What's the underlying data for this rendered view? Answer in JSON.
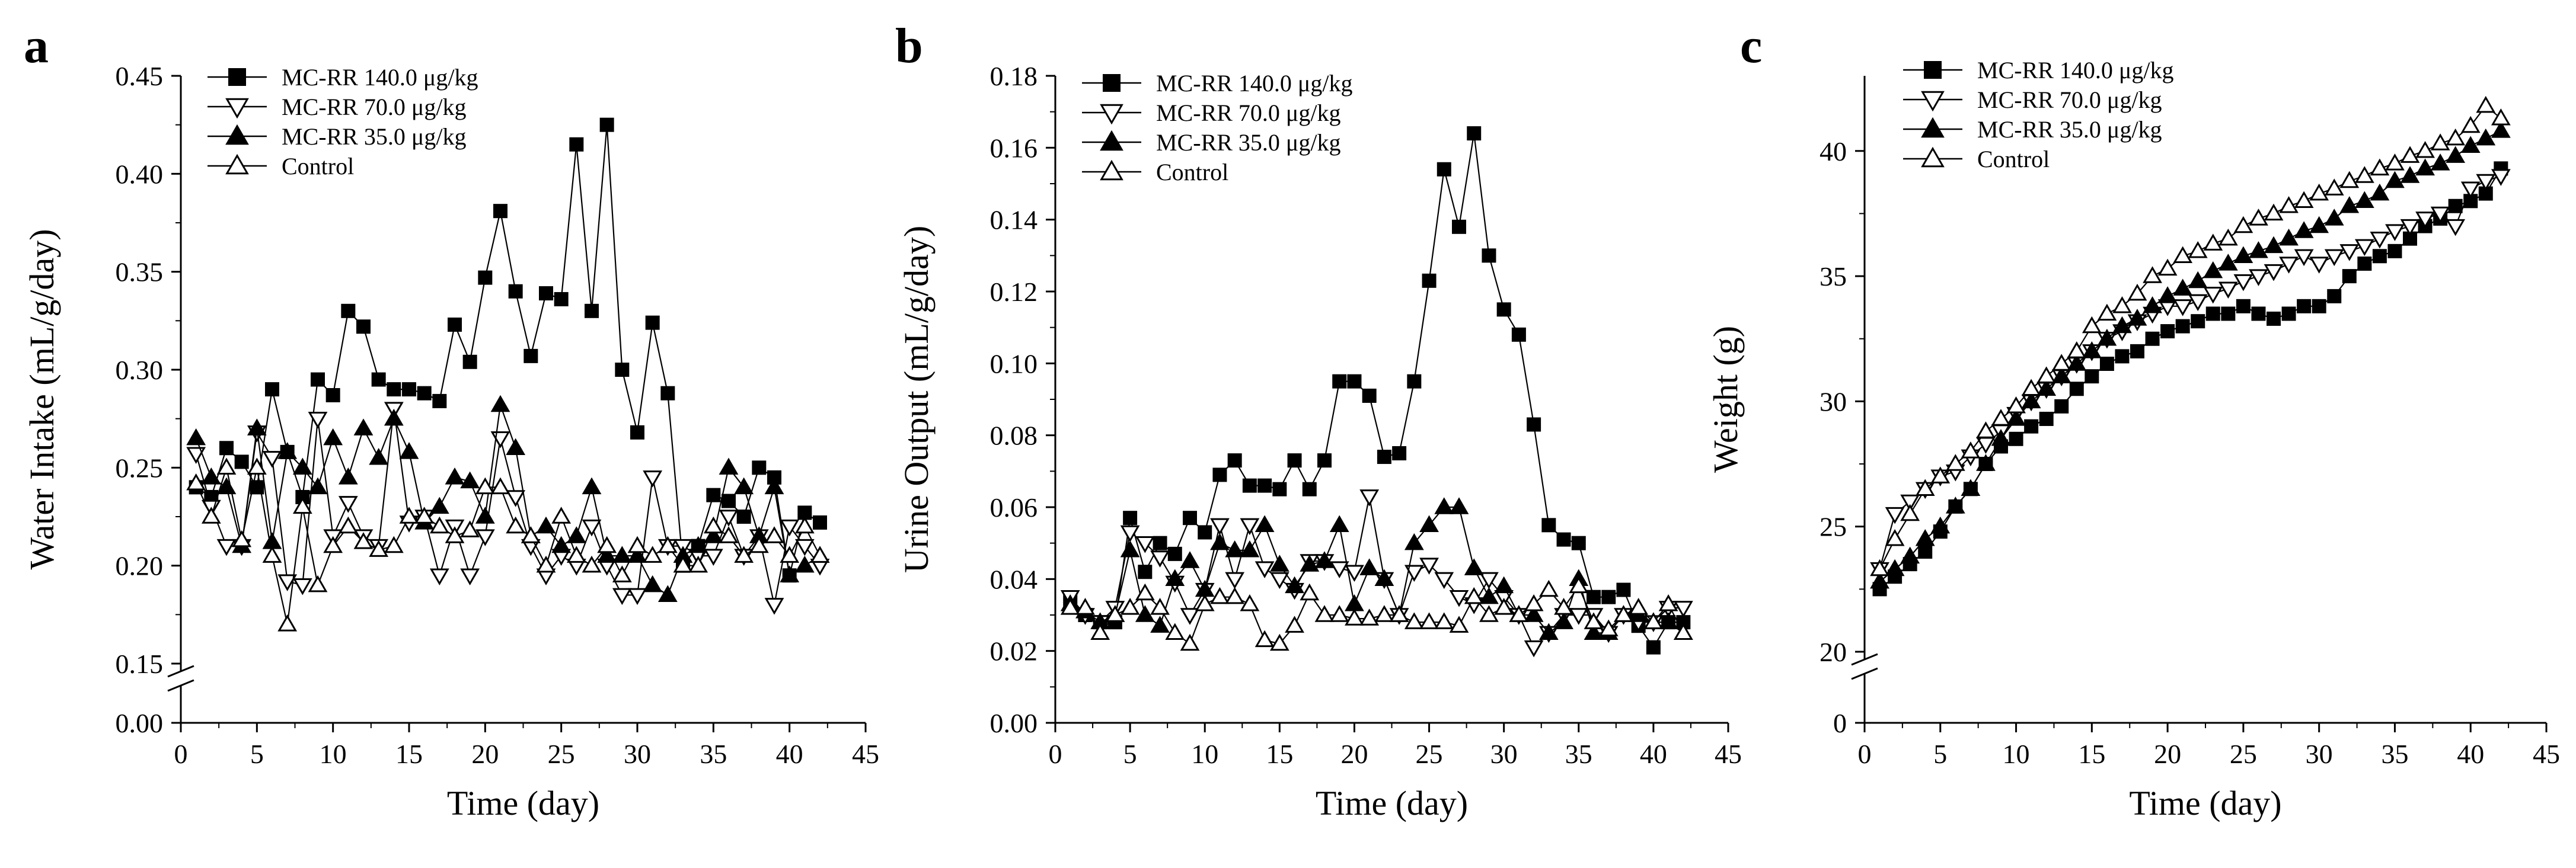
{
  "panels": [
    {
      "letter": "a",
      "type": "line",
      "xlabel": "Time (day)",
      "ylabel": "Water Intake (mL/g/day)",
      "xlim": [
        0,
        45
      ],
      "xticks": [
        0,
        5,
        10,
        15,
        20,
        25,
        30,
        35,
        40,
        45
      ],
      "ylim": [
        0.15,
        0.45
      ],
      "yticks": [
        0.15,
        0.2,
        0.25,
        0.3,
        0.35,
        0.4,
        0.45
      ],
      "ytick_labels": [
        "0.15",
        "0.20",
        "0.25",
        "0.30",
        "0.35",
        "0.40",
        "0.45"
      ],
      "zero_label": "0.00",
      "legend": [
        "MC-RR 140.0 μg/kg",
        "MC-RR 70.0 μg/kg",
        "MC-RR 35.0 μg/kg",
        "Control"
      ],
      "series": [
        {
          "name": "MC-RR 140.0 μg/kg",
          "marker": "square",
          "values": [
            0.24,
            0.235,
            0.26,
            0.253,
            0.24,
            0.29,
            0.258,
            0.235,
            0.295,
            0.287,
            0.33,
            0.322,
            0.295,
            0.29,
            0.29,
            0.288,
            0.284,
            0.323,
            0.304,
            0.347,
            0.381,
            0.34,
            0.307,
            0.339,
            0.336,
            0.415,
            0.33,
            0.425,
            0.3,
            0.268,
            0.324,
            0.288,
            0.2,
            0.21,
            0.236,
            0.233,
            0.225,
            0.25,
            0.245,
            0.195,
            0.227,
            0.222
          ]
        },
        {
          "name": "MC-RR 70.0 μg/kg",
          "marker": "triangle-down",
          "values": [
            0.257,
            0.23,
            0.21,
            0.21,
            0.268,
            0.255,
            0.192,
            0.19,
            0.275,
            0.215,
            0.232,
            0.215,
            0.21,
            0.28,
            0.222,
            0.225,
            0.195,
            0.22,
            0.195,
            0.215,
            0.265,
            0.235,
            0.21,
            0.195,
            0.205,
            0.2,
            0.22,
            0.2,
            0.185,
            0.185,
            0.245,
            0.21,
            0.21,
            0.205,
            0.205,
            0.225,
            0.205,
            0.215,
            0.18,
            0.22,
            0.21,
            0.2
          ]
        },
        {
          "name": "MC-RR 35.0 μg/kg",
          "marker": "triangle-up",
          "values": [
            0.265,
            0.245,
            0.24,
            0.21,
            0.27,
            0.212,
            0.258,
            0.25,
            0.24,
            0.265,
            0.245,
            0.27,
            0.255,
            0.275,
            0.258,
            0.222,
            0.23,
            0.245,
            0.243,
            0.225,
            0.282,
            0.26,
            0.215,
            0.22,
            0.21,
            0.215,
            0.24,
            0.205,
            0.205,
            0.205,
            0.19,
            0.185,
            0.205,
            0.21,
            0.215,
            0.25,
            0.24,
            0.215,
            0.24,
            0.195,
            0.2,
            0.205
          ]
        },
        {
          "name": "Control",
          "marker": "triangle-up-open",
          "values": [
            0.242,
            0.225,
            0.25,
            0.213,
            0.25,
            0.205,
            0.17,
            0.23,
            0.19,
            0.21,
            0.22,
            0.212,
            0.208,
            0.21,
            0.225,
            0.225,
            0.22,
            0.215,
            0.218,
            0.24,
            0.24,
            0.22,
            0.215,
            0.2,
            0.225,
            0.205,
            0.2,
            0.21,
            0.195,
            0.21,
            0.205,
            0.21,
            0.2,
            0.2,
            0.22,
            0.215,
            0.205,
            0.21,
            0.215,
            0.205,
            0.22,
            0.205
          ]
        }
      ]
    },
    {
      "letter": "b",
      "type": "line",
      "xlabel": "Time (day)",
      "ylabel": "Urine Output (mL/g/day)",
      "xlim": [
        0,
        45
      ],
      "xticks": [
        0,
        5,
        10,
        15,
        20,
        25,
        30,
        35,
        40,
        45
      ],
      "ylim": [
        0,
        0.18
      ],
      "yticks": [
        0,
        0.02,
        0.04,
        0.06,
        0.08,
        0.1,
        0.12,
        0.14,
        0.16,
        0.18
      ],
      "ytick_labels": [
        "0.00",
        "0.02",
        "0.04",
        "0.06",
        "0.08",
        "0.10",
        "0.12",
        "0.14",
        "0.16",
        "0.18"
      ],
      "zero_label": "",
      "legend": [
        "MC-RR 140.0 μg/kg",
        "MC-RR 70.0 μg/kg",
        "MC-RR 35.0 μg/kg",
        "Control"
      ],
      "series": [
        {
          "name": "MC-RR 140.0 μg/kg",
          "marker": "square",
          "values": [
            0.034,
            0.03,
            0.028,
            0.028,
            0.057,
            0.042,
            0.05,
            0.047,
            0.057,
            0.053,
            0.069,
            0.073,
            0.066,
            0.066,
            0.065,
            0.073,
            0.065,
            0.073,
            0.095,
            0.095,
            0.091,
            0.074,
            0.075,
            0.095,
            0.123,
            0.154,
            0.138,
            0.164,
            0.13,
            0.115,
            0.108,
            0.083,
            0.055,
            0.051,
            0.05,
            0.035,
            0.035,
            0.037,
            0.027,
            0.021,
            0.028,
            0.028
          ]
        },
        {
          "name": "MC-RR 70.0 μg/kg",
          "marker": "triangle-down",
          "values": [
            0.035,
            0.03,
            0.028,
            0.032,
            0.053,
            0.05,
            0.046,
            0.039,
            0.03,
            0.037,
            0.055,
            0.04,
            0.055,
            0.043,
            0.04,
            0.037,
            0.045,
            0.045,
            0.043,
            0.042,
            0.063,
            0.04,
            0.03,
            0.042,
            0.044,
            0.04,
            0.035,
            0.033,
            0.04,
            0.035,
            0.03,
            0.021,
            0.025,
            0.03,
            0.03,
            0.03,
            0.025,
            0.03,
            0.028,
            0.028,
            0.032,
            0.032
          ]
        },
        {
          "name": "MC-RR 35.0 μg/kg",
          "marker": "triangle-up",
          "values": [
            0.033,
            0.031,
            0.028,
            0.03,
            0.048,
            0.03,
            0.027,
            0.04,
            0.045,
            0.037,
            0.05,
            0.048,
            0.048,
            0.055,
            0.044,
            0.038,
            0.044,
            0.045,
            0.055,
            0.033,
            0.043,
            0.04,
            0.03,
            0.05,
            0.055,
            0.06,
            0.06,
            0.043,
            0.035,
            0.038,
            0.03,
            0.03,
            0.025,
            0.028,
            0.04,
            0.025,
            0.025,
            0.03,
            0.03,
            0.028,
            0.028,
            0.025
          ]
        },
        {
          "name": "Control",
          "marker": "triangle-up-open",
          "values": [
            0.032,
            0.032,
            0.025,
            0.03,
            0.032,
            0.036,
            0.032,
            0.025,
            0.022,
            0.033,
            0.035,
            0.035,
            0.033,
            0.023,
            0.022,
            0.027,
            0.036,
            0.03,
            0.03,
            0.029,
            0.029,
            0.03,
            0.03,
            0.028,
            0.028,
            0.028,
            0.027,
            0.035,
            0.03,
            0.032,
            0.03,
            0.033,
            0.037,
            0.032,
            0.038,
            0.028,
            0.026,
            0.03,
            0.032,
            0.028,
            0.033,
            0.025
          ]
        }
      ]
    },
    {
      "letter": "c",
      "type": "line",
      "xlabel": "Time (day)",
      "ylabel": "Weight (g)",
      "xlim": [
        0,
        45
      ],
      "xticks": [
        0,
        5,
        10,
        15,
        20,
        25,
        30,
        35,
        40,
        45
      ],
      "ylim": [
        20,
        43
      ],
      "yticks": [
        20,
        25,
        30,
        35,
        40
      ],
      "ytick_labels": [
        "20",
        "25",
        "30",
        "35",
        "40"
      ],
      "zero_label": "0",
      "legend": [
        "MC-RR 140.0 μg/kg",
        "MC-RR 70.0 μg/kg",
        "MC-RR 35.0 μg/kg",
        "Control"
      ],
      "series": [
        {
          "name": "MC-RR 140.0 μg/kg",
          "marker": "square",
          "values": [
            22.5,
            23.0,
            23.5,
            24.0,
            24.8,
            25.8,
            26.5,
            27.5,
            28.2,
            28.5,
            29.0,
            29.3,
            29.8,
            30.5,
            31.0,
            31.5,
            31.8,
            32.0,
            32.5,
            32.8,
            33.0,
            33.2,
            33.5,
            33.5,
            33.8,
            33.5,
            33.3,
            33.5,
            33.8,
            33.8,
            34.2,
            35.0,
            35.5,
            35.8,
            36.0,
            36.5,
            37.0,
            37.3,
            37.8,
            38.0,
            38.3,
            39.3
          ]
        },
        {
          "name": "MC-RR 70.0 μg/kg",
          "marker": "triangle-down",
          "values": [
            23.3,
            25.5,
            26.0,
            26.5,
            27.0,
            27.2,
            27.8,
            28.3,
            28.8,
            29.5,
            30.0,
            30.5,
            31.0,
            31.5,
            32.0,
            32.5,
            32.8,
            33.2,
            33.5,
            33.8,
            33.8,
            34.0,
            34.3,
            34.5,
            34.8,
            35.0,
            35.2,
            35.5,
            35.8,
            35.5,
            35.8,
            36.0,
            36.2,
            36.5,
            36.8,
            37.0,
            37.3,
            37.5,
            37.0,
            38.5,
            38.8,
            39.0
          ]
        },
        {
          "name": "MC-RR 35.0 μg/kg",
          "marker": "triangle-up",
          "values": [
            22.8,
            23.3,
            23.8,
            24.5,
            25.0,
            25.8,
            26.5,
            27.5,
            28.5,
            29.3,
            30.0,
            30.5,
            31.0,
            31.5,
            32.0,
            32.5,
            33.0,
            33.3,
            33.8,
            34.2,
            34.5,
            34.8,
            35.2,
            35.5,
            35.8,
            36.0,
            36.2,
            36.5,
            36.8,
            37.0,
            37.3,
            37.8,
            38.0,
            38.3,
            38.8,
            39.0,
            39.3,
            39.5,
            39.8,
            40.2,
            40.5,
            40.8
          ]
        },
        {
          "name": "Control",
          "marker": "triangle-up-open",
          "values": [
            23.3,
            24.5,
            25.5,
            26.5,
            27.0,
            27.5,
            28.0,
            28.8,
            29.3,
            29.8,
            30.5,
            31.0,
            31.5,
            32.0,
            33.0,
            33.5,
            33.8,
            34.3,
            35.0,
            35.3,
            35.8,
            36.0,
            36.3,
            36.5,
            37.0,
            37.3,
            37.5,
            37.8,
            38.0,
            38.3,
            38.5,
            38.8,
            39.0,
            39.3,
            39.5,
            39.8,
            40.0,
            40.3,
            40.5,
            41.0,
            41.8,
            41.3
          ]
        }
      ]
    }
  ]
}
